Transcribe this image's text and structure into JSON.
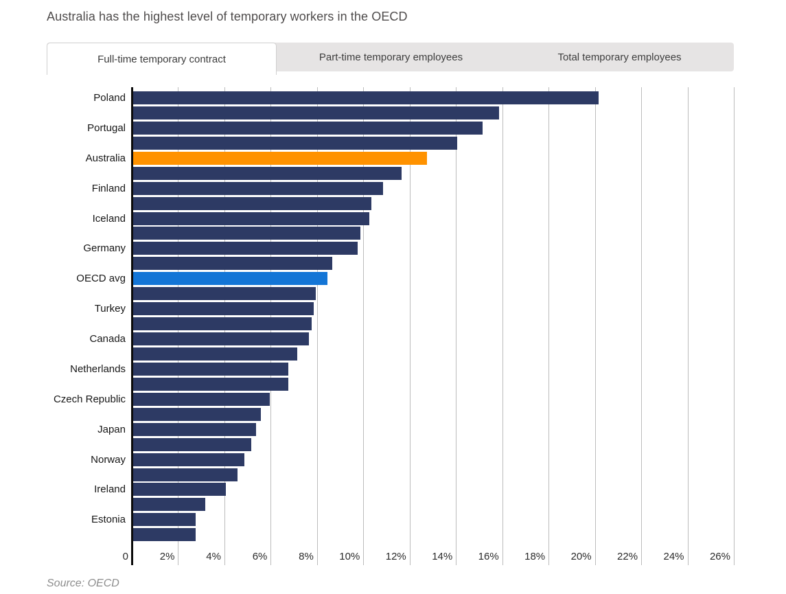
{
  "header": {
    "title": "Australia has the highest level of temporary workers in the OECD"
  },
  "tabs": [
    {
      "label": "Full-time temporary contract",
      "active": true
    },
    {
      "label": "Part-time temporary employees",
      "active": false
    },
    {
      "label": "Total temporary employees",
      "active": false
    }
  ],
  "chart_data": {
    "type": "bar",
    "orientation": "horizontal",
    "title": "Australia has the highest level of temporary workers in the OECD",
    "xlabel": "",
    "ylabel": "",
    "unit": "%",
    "xlim": [
      0,
      26
    ],
    "grid": true,
    "x_ticks": [
      "0",
      "2%",
      "4%",
      "6%",
      "8%",
      "10%",
      "12%",
      "14%",
      "16%",
      "18%",
      "20%",
      "22%",
      "24%",
      "26%"
    ],
    "note": "labels shown only on alternating bars; unlabeled bars have empty label",
    "bars": [
      {
        "label": "Poland",
        "value": 20.1,
        "color": "navy"
      },
      {
        "label": "",
        "value": 15.8,
        "color": "navy"
      },
      {
        "label": "Portugal",
        "value": 15.1,
        "color": "navy"
      },
      {
        "label": "",
        "value": 14.0,
        "color": "navy"
      },
      {
        "label": "Australia",
        "value": 12.7,
        "color": "orange"
      },
      {
        "label": "",
        "value": 11.6,
        "color": "navy"
      },
      {
        "label": "Finland",
        "value": 10.8,
        "color": "navy"
      },
      {
        "label": "",
        "value": 10.3,
        "color": "navy"
      },
      {
        "label": "Iceland",
        "value": 10.2,
        "color": "navy"
      },
      {
        "label": "",
        "value": 9.8,
        "color": "navy"
      },
      {
        "label": "Germany",
        "value": 9.7,
        "color": "navy"
      },
      {
        "label": "",
        "value": 8.6,
        "color": "navy"
      },
      {
        "label": "OECD avg",
        "value": 8.4,
        "color": "blue"
      },
      {
        "label": "",
        "value": 7.9,
        "color": "navy"
      },
      {
        "label": "Turkey",
        "value": 7.8,
        "color": "navy"
      },
      {
        "label": "",
        "value": 7.7,
        "color": "navy"
      },
      {
        "label": "Canada",
        "value": 7.6,
        "color": "navy"
      },
      {
        "label": "",
        "value": 7.1,
        "color": "navy"
      },
      {
        "label": "Netherlands",
        "value": 6.7,
        "color": "navy"
      },
      {
        "label": "",
        "value": 6.7,
        "color": "navy"
      },
      {
        "label": "Czech Republic",
        "value": 5.9,
        "color": "navy"
      },
      {
        "label": "",
        "value": 5.5,
        "color": "navy"
      },
      {
        "label": "Japan",
        "value": 5.3,
        "color": "navy"
      },
      {
        "label": "",
        "value": 5.1,
        "color": "navy"
      },
      {
        "label": "Norway",
        "value": 4.8,
        "color": "navy"
      },
      {
        "label": "",
        "value": 4.5,
        "color": "navy"
      },
      {
        "label": "Ireland",
        "value": 4.0,
        "color": "navy"
      },
      {
        "label": "",
        "value": 3.1,
        "color": "navy"
      },
      {
        "label": "Estonia",
        "value": 2.7,
        "color": "navy"
      },
      {
        "label": "",
        "value": 2.7,
        "color": "navy"
      }
    ],
    "colors": {
      "navy": "#2d3a64",
      "orange": "#ff9200",
      "blue": "#1375d6",
      "gridline": "#bcbcbc",
      "axis": "#0b0b0b"
    }
  },
  "footer": {
    "source": "Source: OECD"
  }
}
